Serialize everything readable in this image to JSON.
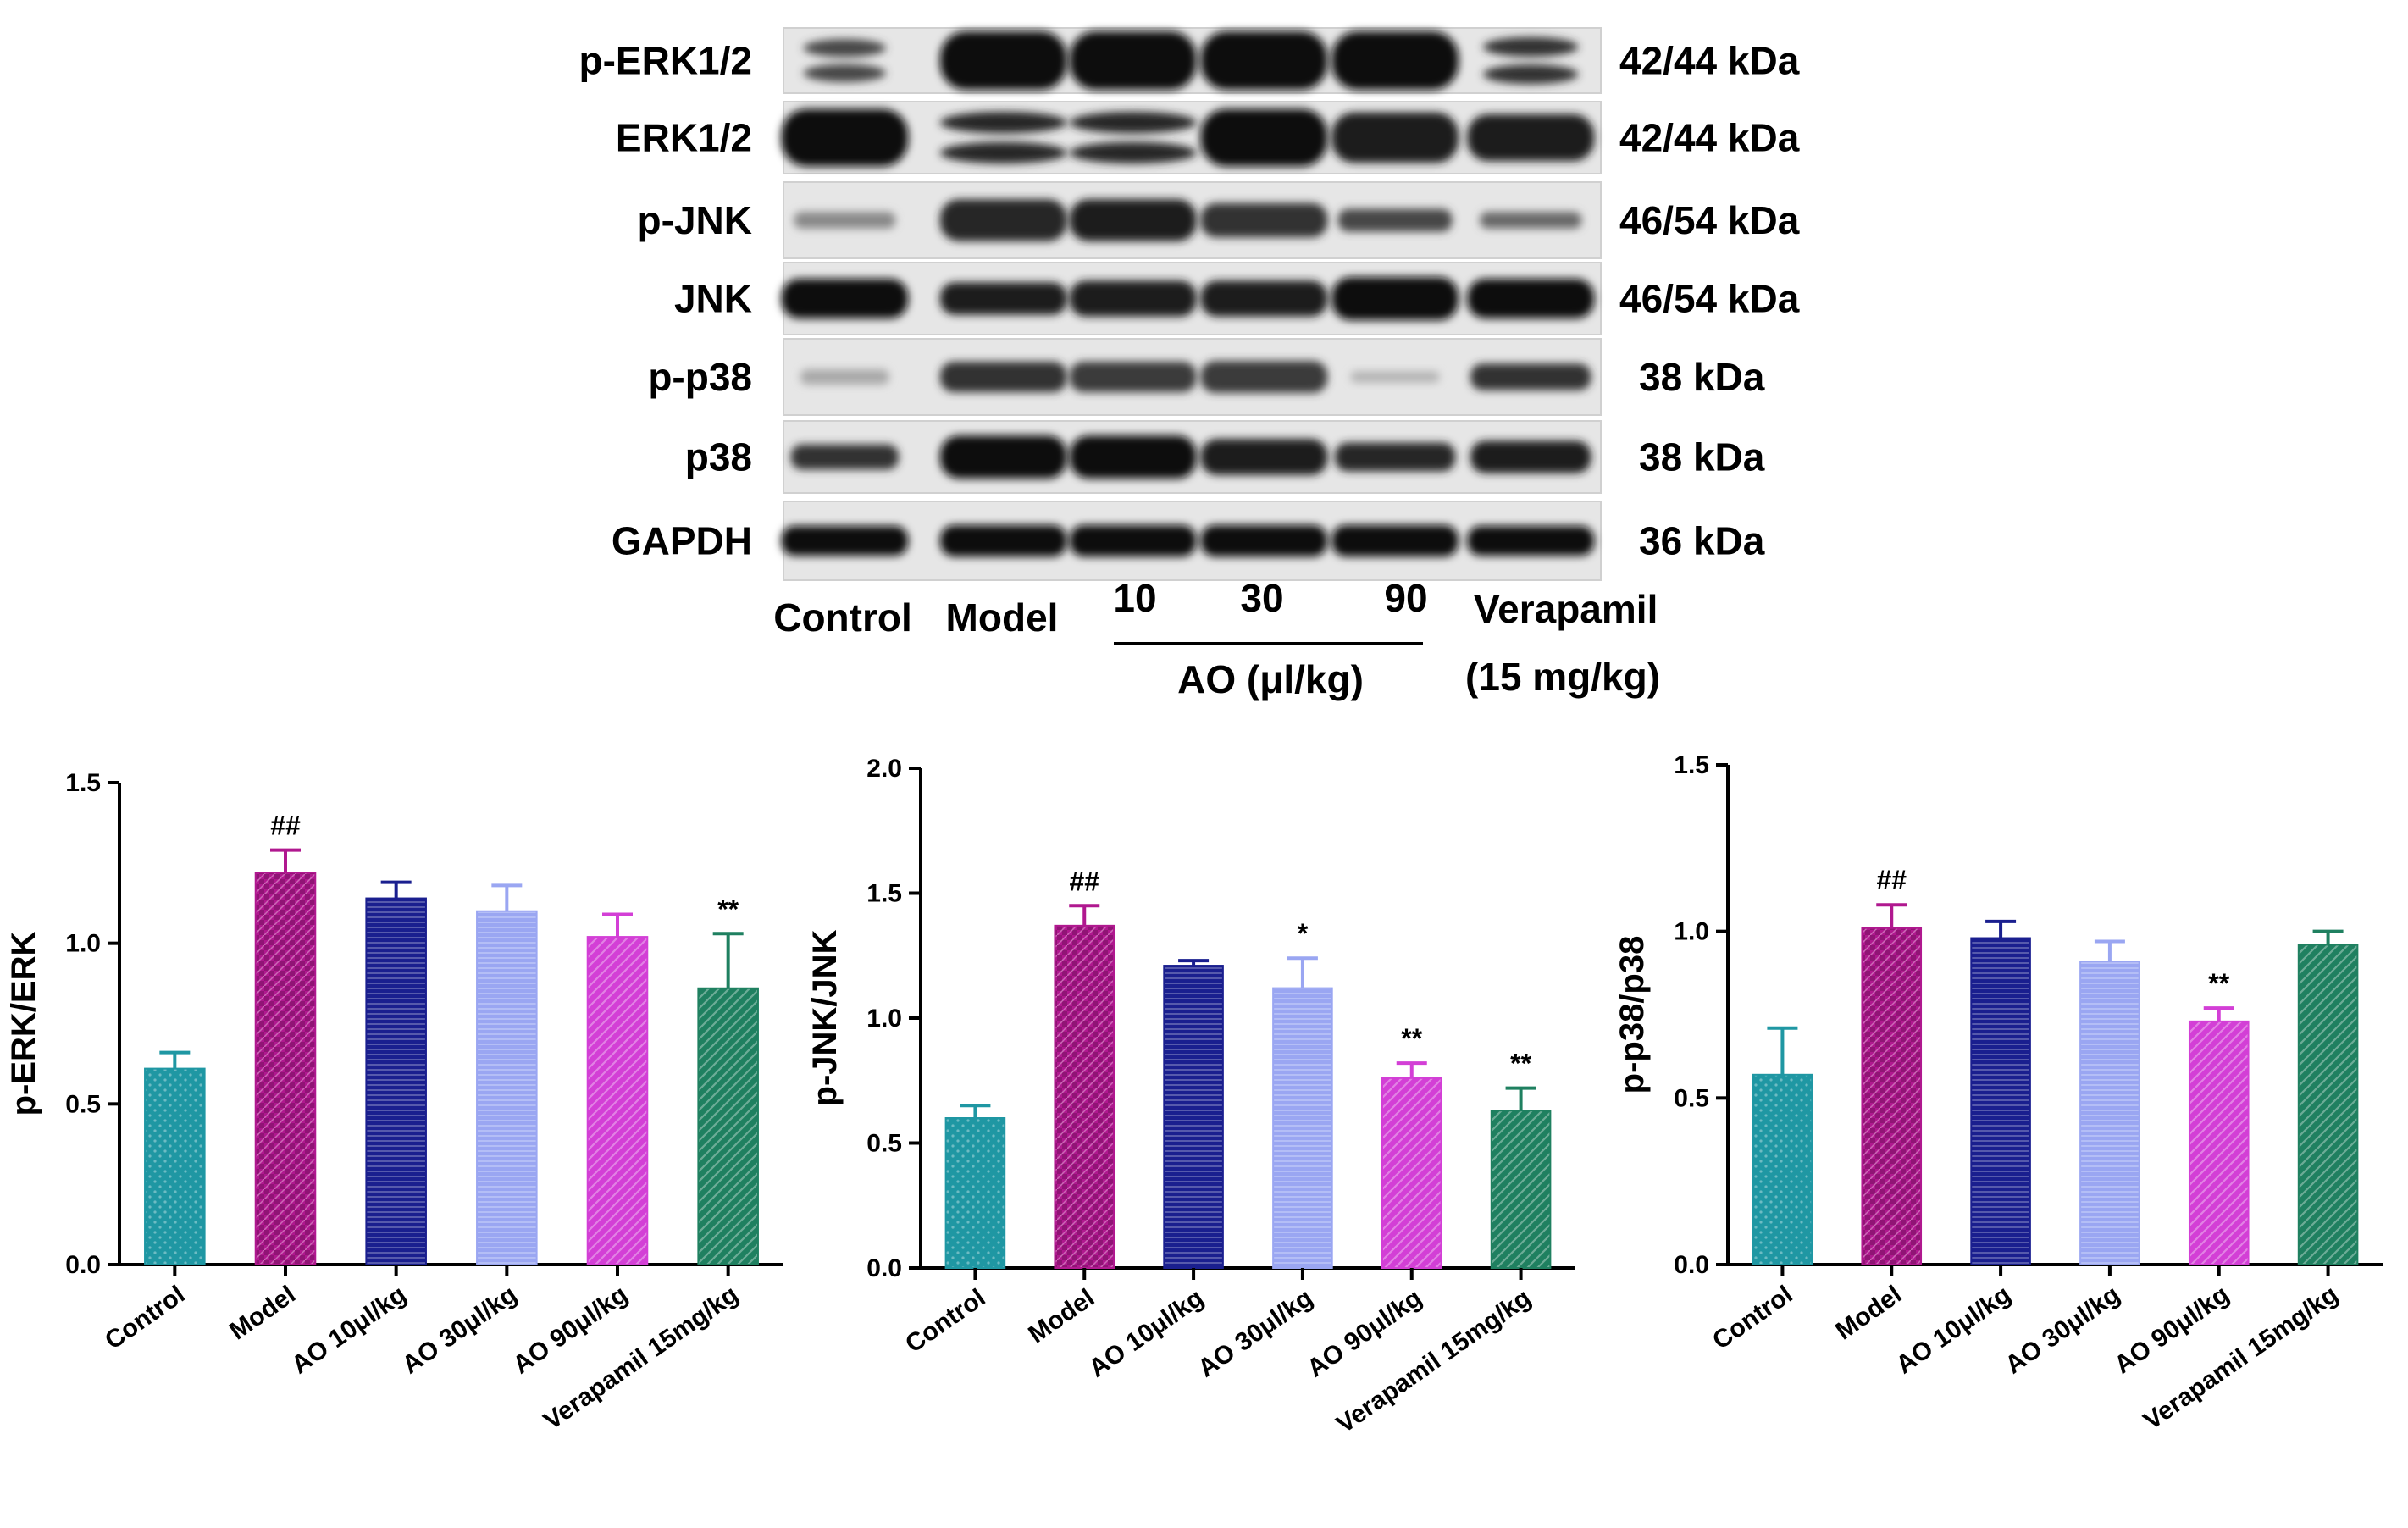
{
  "blot": {
    "proteins": [
      "p-ERK1/2",
      "ERK1/2",
      "p-JNK",
      "JNK",
      "p-p38",
      "p38",
      "GAPDH"
    ],
    "sizes": [
      "42/44 kDa",
      "42/44 kDa",
      "46/54 kDa",
      "46/54 kDa",
      "38 kDa",
      "38 kDa",
      "36 kDa"
    ],
    "lane_labels": [
      "Control",
      "Model",
      "10",
      "30",
      "90",
      "Verapamil"
    ],
    "ao_label": "AO (μl/kg)",
    "verapamil_dose": "(15 mg/kg)"
  },
  "colors": {
    "Control": "#1f97a3",
    "Model": "#b0188f",
    "AO 10μl/kg": "#1a1f8f",
    "AO 30μl/kg": "#9aa6f2",
    "AO 90μl/kg": "#d33fd6",
    "Verapamil 15mg/kg": "#1f8060"
  },
  "chart_data": [
    {
      "type": "bar",
      "categories": [
        "Control",
        "Model",
        "AO 10μl/kg",
        "AO 30μl/kg",
        "AO 90μl/kg",
        "Verapamil 15mg/kg"
      ],
      "values": [
        0.61,
        1.22,
        1.14,
        1.1,
        1.02,
        0.86
      ],
      "errors": [
        0.05,
        0.07,
        0.05,
        0.08,
        0.07,
        0.17
      ],
      "annotations": [
        "",
        "##",
        "",
        "",
        "",
        "**"
      ],
      "ylabel": "p-ERK/ERK",
      "ylim": [
        0,
        1.5
      ],
      "yticks": [
        0.0,
        0.5,
        1.0,
        1.5
      ],
      "ytick_labels": [
        "0.0",
        "0.5",
        "1.0",
        "1.5"
      ]
    },
    {
      "type": "bar",
      "categories": [
        "Control",
        "Model",
        "AO 10μl/kg",
        "AO 30μl/kg",
        "AO 90μl/kg",
        "Verapamil 15mg/kg"
      ],
      "values": [
        0.6,
        1.37,
        1.21,
        1.12,
        0.76,
        0.63
      ],
      "errors": [
        0.05,
        0.08,
        0.02,
        0.12,
        0.06,
        0.09
      ],
      "annotations": [
        "",
        "##",
        "",
        "*",
        "**",
        "**"
      ],
      "ylabel": "p-JNK/JNK",
      "ylim": [
        0,
        2.0
      ],
      "yticks": [
        0.0,
        0.5,
        1.0,
        1.5,
        2.0
      ],
      "ytick_labels": [
        "0.0",
        "0.5",
        "1.0",
        "1.5",
        "2.0"
      ]
    },
    {
      "type": "bar",
      "categories": [
        "Control",
        "Model",
        "AO 10μl/kg",
        "AO 30μl/kg",
        "AO 90μl/kg",
        "Verapamil 15mg/kg"
      ],
      "values": [
        0.57,
        1.01,
        0.98,
        0.91,
        0.73,
        0.96
      ],
      "errors": [
        0.14,
        0.07,
        0.05,
        0.06,
        0.04,
        0.04
      ],
      "annotations": [
        "",
        "##",
        "",
        "",
        "**",
        ""
      ],
      "ylabel": "p-p38/p38",
      "ylim": [
        0,
        1.5
      ],
      "yticks": [
        0.0,
        0.5,
        1.0,
        1.5
      ],
      "ytick_labels": [
        "0.0",
        "0.5",
        "1.0",
        "1.5"
      ]
    }
  ]
}
